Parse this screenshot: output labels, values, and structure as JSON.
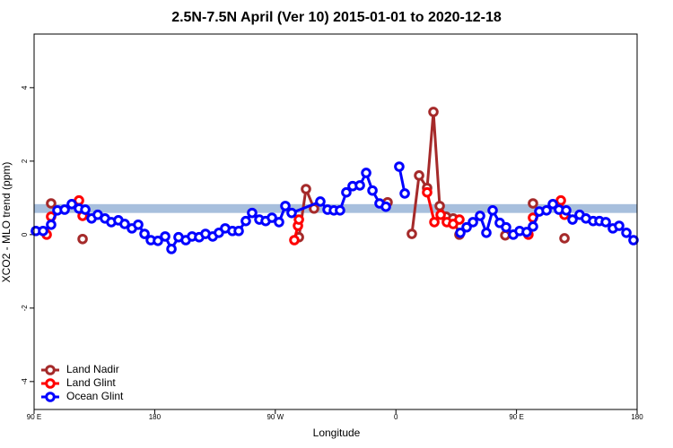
{
  "chart_data": {
    "type": "line",
    "title": "2.5N-7.5N April (Ver 10)   2015-01-01 to 2020-12-18",
    "x_label": "Longitude",
    "y_label": "XCO2 - MLO trend (ppm)",
    "xlim": [
      90,
      540
    ],
    "ylim": [
      -4.76,
      5.46
    ],
    "xticks": [
      {
        "value": 90,
        "label": "90 E"
      },
      180,
      {
        "value": 270,
        "label": "90 W"
      },
      {
        "value": 360,
        "label": "0"
      },
      {
        "value": 450,
        "label": "90 E"
      },
      180
    ],
    "yticks": [
      -4,
      -2,
      0,
      2,
      4
    ],
    "band_ylim": [
      0.59,
      0.83
    ],
    "band_color": "#a7bfdd",
    "legend": "bottomleft",
    "series": [
      {
        "name": "Land Nadir",
        "color": "#a52a2a",
        "x": [
          102.7,
          null,
          126.2,
          null,
          287.6,
          292.9,
          298.9,
          null,
          353.8,
          null,
          371.9,
          377.3,
          383.3,
          388.0,
          392.7,
          397.4,
          402.7,
          407.4,
          null,
          441.6,
          null,
          462.3,
          null,
          485.8
        ],
        "values": [
          0.85,
          null,
          -0.12,
          null,
          -0.07,
          1.24,
          0.71,
          null,
          0.88,
          null,
          0.02,
          1.61,
          1.27,
          3.34,
          0.78,
          0.49,
          0.44,
          0.0,
          null,
          -0.02,
          null,
          0.85,
          null,
          -0.1
        ]
      },
      {
        "name": "Land Glint",
        "color": "#ff0000",
        "x": [
          99.4,
          102.7,
          null,
          123.5,
          126.2,
          null,
          284.2,
          286.9,
          287.6,
          null,
          383.3,
          388.7,
          393.4,
          398.0,
          402.7,
          407.4,
          null,
          458.9,
          462.3,
          null,
          483.1,
          485.8
        ],
        "values": [
          0.0,
          0.49,
          null,
          0.93,
          0.51,
          null,
          -0.15,
          0.24,
          0.41,
          null,
          1.15,
          0.34,
          0.54,
          0.34,
          0.29,
          0.41,
          null,
          0.0,
          0.46,
          null,
          0.93,
          0.54
        ]
      },
      {
        "name": "Ocean Glint",
        "color": "#0000ff",
        "x": [
          91.3,
          96.7,
          102.7,
          107.4,
          112.8,
          118.1,
          123.5,
          128.2,
          132.9,
          137.5,
          142.9,
          147.6,
          152.9,
          157.6,
          163.0,
          167.7,
          172.4,
          177.1,
          182.4,
          187.8,
          192.5,
          197.8,
          203.2,
          207.9,
          213.2,
          217.9,
          223.3,
          227.9,
          232.6,
          238.0,
          242.7,
          248.0,
          252.7,
          258.1,
          262.8,
          267.5,
          272.8,
          277.5,
          282.2,
          303.6,
          309.0,
          313.7,
          318.3,
          323.0,
          327.7,
          333.1,
          337.8,
          342.5,
          347.8,
          352.5,
          null,
          362.5,
          366.6,
          null,
          408.1,
          412.8,
          417.5,
          422.8,
          427.5,
          432.2,
          437.5,
          442.2,
          447.6,
          452.3,
          457.6,
          462.3,
          467.0,
          472.4,
          477.1,
          481.7,
          487.1,
          491.8,
          497.1,
          501.8,
          507.2,
          511.9,
          516.6,
          521.9,
          526.6,
          532.0,
          537.3
        ],
        "values": [
          0.1,
          0.1,
          0.27,
          0.66,
          0.68,
          0.83,
          0.71,
          0.68,
          0.44,
          0.54,
          0.44,
          0.34,
          0.39,
          0.29,
          0.17,
          0.27,
          0.02,
          -0.15,
          -0.17,
          -0.05,
          -0.39,
          -0.07,
          -0.15,
          -0.05,
          -0.07,
          0.02,
          -0.05,
          0.05,
          0.17,
          0.1,
          0.1,
          0.37,
          0.59,
          0.41,
          0.37,
          0.46,
          0.34,
          0.78,
          0.59,
          0.9,
          0.68,
          0.66,
          0.66,
          1.15,
          1.32,
          1.34,
          1.68,
          1.2,
          0.85,
          0.76,
          null,
          1.85,
          1.12,
          null,
          0.05,
          0.2,
          0.34,
          0.51,
          0.05,
          0.66,
          0.32,
          0.2,
          0.0,
          0.1,
          0.07,
          0.22,
          0.63,
          0.66,
          0.83,
          0.68,
          0.66,
          0.41,
          0.54,
          0.44,
          0.37,
          0.37,
          0.34,
          0.17,
          0.24,
          0.05,
          -0.15
        ]
      }
    ]
  }
}
